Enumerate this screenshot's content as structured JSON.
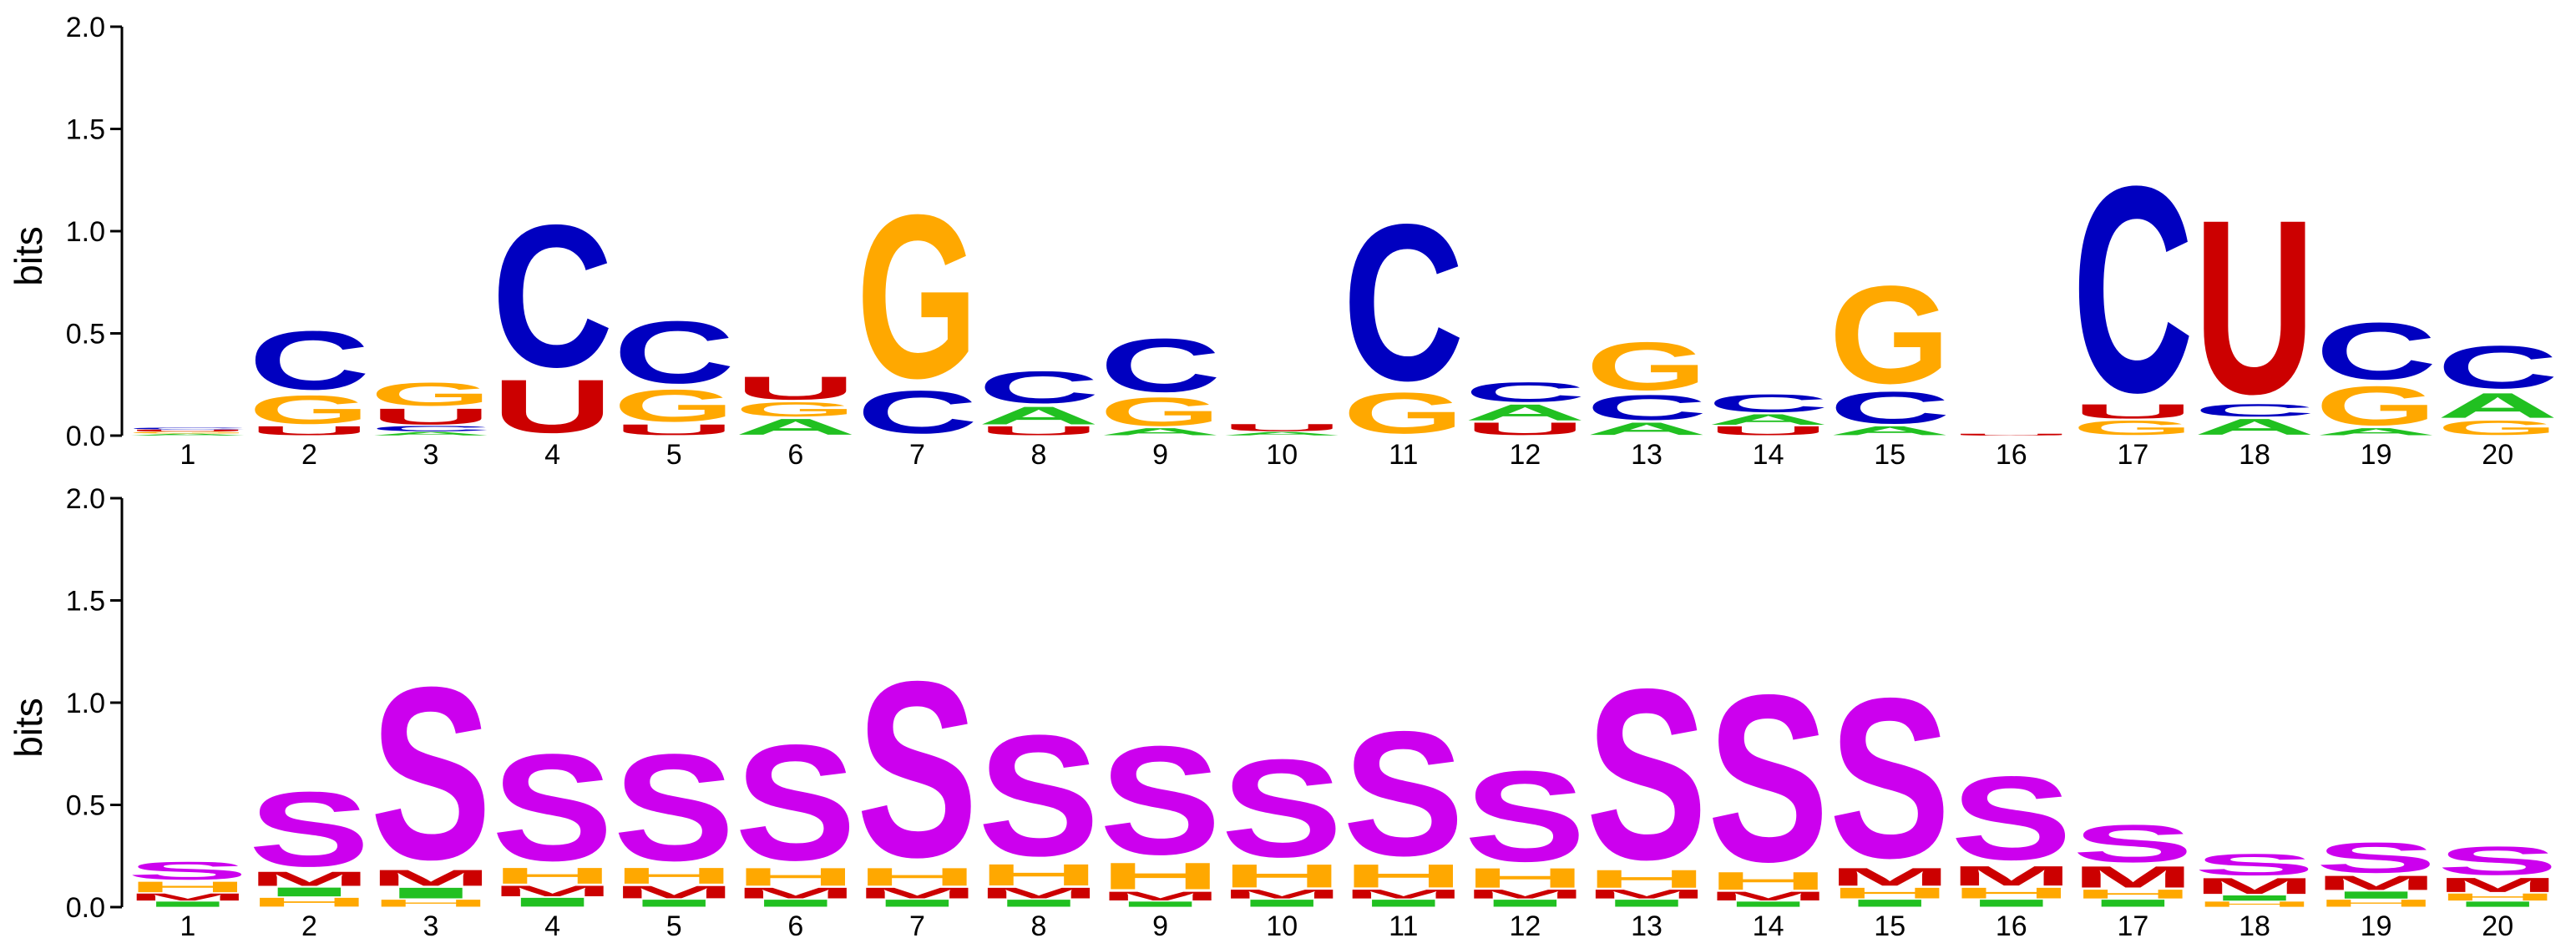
{
  "chart_data": [
    {
      "type": "sequence-logo",
      "ylabel": "bits",
      "ylim": [
        0,
        2.0
      ],
      "yticks": [
        "0.0",
        "0.5",
        "1.0",
        "1.5",
        "2.0"
      ],
      "positions": [
        "1",
        "2",
        "3",
        "4",
        "5",
        "6",
        "7",
        "8",
        "9",
        "10",
        "11",
        "12",
        "13",
        "14",
        "15",
        "16",
        "17",
        "18",
        "19",
        "20"
      ],
      "colors": {
        "A": "#21c021",
        "C": "#0000c0",
        "G": "#ffa800",
        "U": "#cc0000"
      },
      "stacks": [
        [
          [
            "A",
            0.01
          ],
          [
            "G",
            0.01
          ],
          [
            "U",
            0.01
          ],
          [
            "C",
            0.01
          ]
        ],
        [
          [
            "U",
            0.05
          ],
          [
            "G",
            0.16
          ],
          [
            "C",
            0.33
          ]
        ],
        [
          [
            "A",
            0.02
          ],
          [
            "C",
            0.03
          ],
          [
            "U",
            0.09
          ],
          [
            "G",
            0.13
          ]
        ],
        [
          [
            "U",
            0.3
          ],
          [
            "C",
            0.8
          ]
        ],
        [
          [
            "U",
            0.06
          ],
          [
            "G",
            0.18
          ],
          [
            "C",
            0.35
          ]
        ],
        [
          [
            "A",
            0.09
          ],
          [
            "G",
            0.08
          ],
          [
            "U",
            0.13
          ]
        ],
        [
          [
            "C",
            0.24
          ],
          [
            "G",
            0.92
          ]
        ],
        [
          [
            "U",
            0.05
          ],
          [
            "A",
            0.1
          ],
          [
            "C",
            0.18
          ]
        ],
        [
          [
            "A",
            0.04
          ],
          [
            "G",
            0.16
          ],
          [
            "C",
            0.3
          ]
        ],
        [
          [
            "A",
            0.02
          ],
          [
            "U",
            0.04
          ]
        ],
        [
          [
            "G",
            0.23
          ],
          [
            "C",
            0.88
          ]
        ],
        [
          [
            "U",
            0.07
          ],
          [
            "A",
            0.09
          ],
          [
            "C",
            0.11
          ]
        ],
        [
          [
            "A",
            0.07
          ],
          [
            "C",
            0.14
          ],
          [
            "G",
            0.27
          ]
        ],
        [
          [
            "U",
            0.05
          ],
          [
            "A",
            0.06
          ],
          [
            "C",
            0.1
          ]
        ],
        [
          [
            "A",
            0.05
          ],
          [
            "C",
            0.18
          ],
          [
            "G",
            0.55
          ]
        ],
        [
          [
            "U",
            0.01
          ]
        ],
        [
          [
            "G",
            0.08
          ],
          [
            "U",
            0.08
          ],
          [
            "C",
            1.16
          ]
        ],
        [
          [
            "A",
            0.09
          ],
          [
            "C",
            0.07
          ],
          [
            "U",
            0.98
          ]
        ],
        [
          [
            "A",
            0.04
          ],
          [
            "G",
            0.22
          ],
          [
            "C",
            0.32
          ]
        ],
        [
          [
            "G",
            0.08
          ],
          [
            "A",
            0.14
          ],
          [
            "C",
            0.24
          ]
        ]
      ]
    },
    {
      "type": "sequence-logo",
      "ylabel": "bits",
      "ylim": [
        0,
        2.0
      ],
      "yticks": [
        "0.0",
        "0.5",
        "1.0",
        "1.5",
        "2.0"
      ],
      "positions": [
        "1",
        "2",
        "3",
        "4",
        "5",
        "6",
        "7",
        "8",
        "9",
        "10",
        "11",
        "12",
        "13",
        "14",
        "15",
        "16",
        "17",
        "18",
        "19",
        "20"
      ],
      "colors": {
        "S": "#cc00ee",
        "H": "#ffa800",
        "M": "#cc0000",
        "I": "#21c021"
      },
      "stacks": [
        [
          [
            "I",
            0.03
          ],
          [
            "M",
            0.04
          ],
          [
            "H",
            0.06
          ],
          [
            "S",
            0.1
          ]
        ],
        [
          [
            "H",
            0.05
          ],
          [
            "I",
            0.05
          ],
          [
            "M",
            0.08
          ],
          [
            "S",
            0.42
          ]
        ],
        [
          [
            "H",
            0.04
          ],
          [
            "I",
            0.06
          ],
          [
            "M",
            0.09
          ],
          [
            "S",
            0.97
          ]
        ],
        [
          [
            "I",
            0.05
          ],
          [
            "M",
            0.06
          ],
          [
            "H",
            0.09
          ],
          [
            "S",
            0.6
          ]
        ],
        [
          [
            "I",
            0.04
          ],
          [
            "M",
            0.07
          ],
          [
            "H",
            0.09
          ],
          [
            "S",
            0.6
          ]
        ],
        [
          [
            "I",
            0.04
          ],
          [
            "M",
            0.06
          ],
          [
            "H",
            0.1
          ],
          [
            "S",
            0.65
          ]
        ],
        [
          [
            "I",
            0.04
          ],
          [
            "M",
            0.06
          ],
          [
            "H",
            0.1
          ],
          [
            "S",
            0.99
          ]
        ],
        [
          [
            "I",
            0.04
          ],
          [
            "M",
            0.06
          ],
          [
            "H",
            0.12
          ],
          [
            "S",
            0.68
          ]
        ],
        [
          [
            "I",
            0.03
          ],
          [
            "M",
            0.05
          ],
          [
            "H",
            0.15
          ],
          [
            "S",
            0.61
          ]
        ],
        [
          [
            "I",
            0.04
          ],
          [
            "M",
            0.05
          ],
          [
            "H",
            0.13
          ],
          [
            "S",
            0.55
          ]
        ],
        [
          [
            "I",
            0.04
          ],
          [
            "M",
            0.05
          ],
          [
            "H",
            0.13
          ],
          [
            "S",
            0.7
          ]
        ],
        [
          [
            "I",
            0.04
          ],
          [
            "M",
            0.05
          ],
          [
            "H",
            0.11
          ],
          [
            "S",
            0.51
          ]
        ],
        [
          [
            "I",
            0.04
          ],
          [
            "M",
            0.05
          ],
          [
            "H",
            0.1
          ],
          [
            "S",
            0.96
          ]
        ],
        [
          [
            "I",
            0.03
          ],
          [
            "M",
            0.05
          ],
          [
            "H",
            0.1
          ],
          [
            "S",
            0.94
          ]
        ],
        [
          [
            "I",
            0.04
          ],
          [
            "H",
            0.06
          ],
          [
            "M",
            0.1
          ],
          [
            "S",
            0.9
          ]
        ],
        [
          [
            "I",
            0.04
          ],
          [
            "H",
            0.06
          ],
          [
            "M",
            0.11
          ],
          [
            "S",
            0.47
          ]
        ],
        [
          [
            "I",
            0.04
          ],
          [
            "H",
            0.05
          ],
          [
            "M",
            0.12
          ],
          [
            "S",
            0.21
          ]
        ],
        [
          [
            "H",
            0.03
          ],
          [
            "I",
            0.03
          ],
          [
            "M",
            0.09
          ],
          [
            "S",
            0.12
          ]
        ],
        [
          [
            "H",
            0.04
          ],
          [
            "I",
            0.04
          ],
          [
            "M",
            0.08
          ],
          [
            "S",
            0.17
          ]
        ],
        [
          [
            "I",
            0.03
          ],
          [
            "H",
            0.04
          ],
          [
            "M",
            0.08
          ],
          [
            "S",
            0.16
          ]
        ]
      ]
    }
  ]
}
